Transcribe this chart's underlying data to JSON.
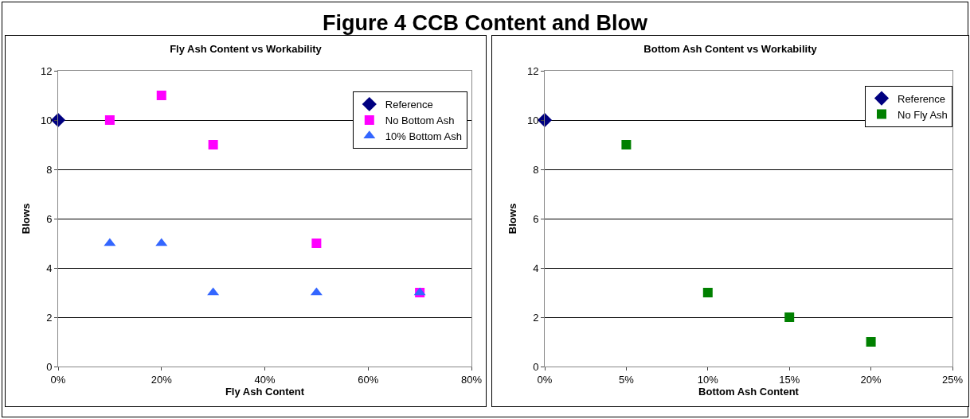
{
  "chart_data": [
    {
      "type": "scatter",
      "title": "Fly Ash Content vs Workability",
      "xlabel": "Fly Ash Content",
      "ylabel": "Blows",
      "annotations": [
        "Figure 4 CCB Content and Blow"
      ],
      "xlim": [
        0,
        80
      ],
      "xticks": [
        {
          "value": 0,
          "label": "0%"
        },
        {
          "value": 20,
          "label": "20%"
        },
        {
          "value": 40,
          "label": "40%"
        },
        {
          "value": 60,
          "label": "60%"
        },
        {
          "value": 80,
          "label": "80%"
        }
      ],
      "ylim": [
        0,
        12
      ],
      "yticks": [
        0,
        2,
        4,
        6,
        8,
        10,
        12
      ],
      "grid": "y",
      "legend": "top right",
      "series": [
        {
          "name": "Reference",
          "color": "#000080",
          "marker": "diamond",
          "x": [
            0
          ],
          "values": [
            10
          ]
        },
        {
          "name": "No Bottom Ash",
          "color": "#ff00ff",
          "marker": "square",
          "x": [
            10,
            20,
            30,
            50,
            70
          ],
          "values": [
            10,
            11,
            9,
            5,
            3
          ]
        },
        {
          "name": "10% Bottom Ash",
          "color": "#3366ff",
          "marker": "triangle",
          "x": [
            10,
            20,
            30,
            50,
            70
          ],
          "values": [
            5,
            5,
            3,
            3,
            3
          ]
        }
      ]
    },
    {
      "type": "scatter",
      "title": "Bottom Ash Content vs Workability",
      "xlabel": "Bottom Ash Content",
      "ylabel": "Blows",
      "xlim": [
        0,
        25
      ],
      "xticks": [
        {
          "value": 0,
          "label": "0%"
        },
        {
          "value": 5,
          "label": "5%"
        },
        {
          "value": 10,
          "label": "10%"
        },
        {
          "value": 15,
          "label": "15%"
        },
        {
          "value": 20,
          "label": "20%"
        },
        {
          "value": 25,
          "label": "25%"
        }
      ],
      "ylim": [
        0,
        12
      ],
      "yticks": [
        0,
        2,
        4,
        6,
        8,
        10,
        12
      ],
      "grid": "y",
      "legend": "top right",
      "series": [
        {
          "name": "Reference",
          "color": "#000080",
          "marker": "diamond",
          "x": [
            0
          ],
          "values": [
            10
          ]
        },
        {
          "name": "No Fly Ash",
          "color": "#008000",
          "marker": "square",
          "x": [
            5,
            10,
            15,
            20
          ],
          "values": [
            9,
            3,
            2,
            1
          ]
        }
      ]
    }
  ]
}
